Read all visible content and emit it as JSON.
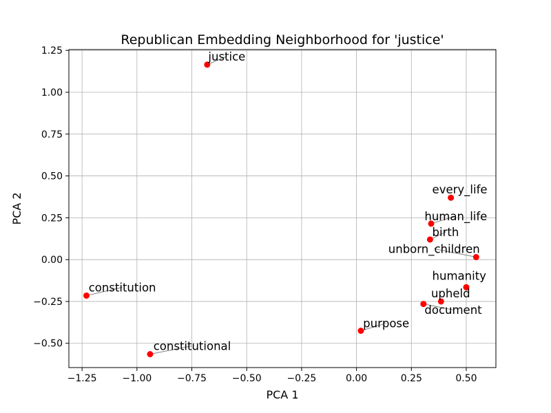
{
  "chart_data": {
    "type": "scatter",
    "title": "Republican Embedding Neighborhood for 'justice'",
    "xlabel": "PCA 1",
    "ylabel": "PCA 2",
    "xlim": [
      -1.31,
      0.635
    ],
    "ylim": [
      -0.645,
      1.255
    ],
    "xticks": [
      -1.25,
      -1.0,
      -0.75,
      -0.5,
      -0.25,
      0.0,
      0.25,
      0.5
    ],
    "xtick_labels": [
      "−1.25",
      "−1.00",
      "−0.75",
      "−0.50",
      "−0.25",
      "0.00",
      "0.25",
      "0.50"
    ],
    "yticks": [
      -0.5,
      -0.25,
      0.0,
      0.25,
      0.5,
      0.75,
      1.0,
      1.25
    ],
    "ytick_labels": [
      "−0.50",
      "−0.25",
      "0.00",
      "0.25",
      "0.50",
      "0.75",
      "1.00",
      "1.25"
    ],
    "grid": true,
    "point_color": "#ff0000",
    "points": [
      {
        "label": "justice",
        "x": -0.68,
        "y": 1.165,
        "label_x": -0.675,
        "label_y": 1.19
      },
      {
        "label": "every_life",
        "x": 0.43,
        "y": 0.37,
        "label_x": 0.345,
        "label_y": 0.395
      },
      {
        "label": "human_life",
        "x": 0.34,
        "y": 0.215,
        "label_x": 0.31,
        "label_y": 0.235
      },
      {
        "label": "birth",
        "x": 0.335,
        "y": 0.12,
        "label_x": 0.345,
        "label_y": 0.14
      },
      {
        "label": "unborn_children",
        "x": 0.545,
        "y": 0.015,
        "label_x": 0.145,
        "label_y": 0.04
      },
      {
        "label": "humanity",
        "x": 0.5,
        "y": -0.165,
        "label_x": 0.345,
        "label_y": -0.12
      },
      {
        "label": "upheld",
        "x": 0.385,
        "y": -0.25,
        "label_x": 0.34,
        "label_y": -0.225
      },
      {
        "label": "document",
        "x": 0.305,
        "y": -0.265,
        "label_x": 0.31,
        "label_y": -0.325
      },
      {
        "label": "purpose",
        "x": 0.02,
        "y": -0.425,
        "label_x": 0.03,
        "label_y": -0.405
      },
      {
        "label": "constitution",
        "x": -1.23,
        "y": -0.215,
        "label_x": -1.22,
        "label_y": -0.19
      },
      {
        "label": "constitutional",
        "x": -0.94,
        "y": -0.565,
        "label_x": -0.925,
        "label_y": -0.54
      }
    ],
    "leader_color": "#808080"
  }
}
